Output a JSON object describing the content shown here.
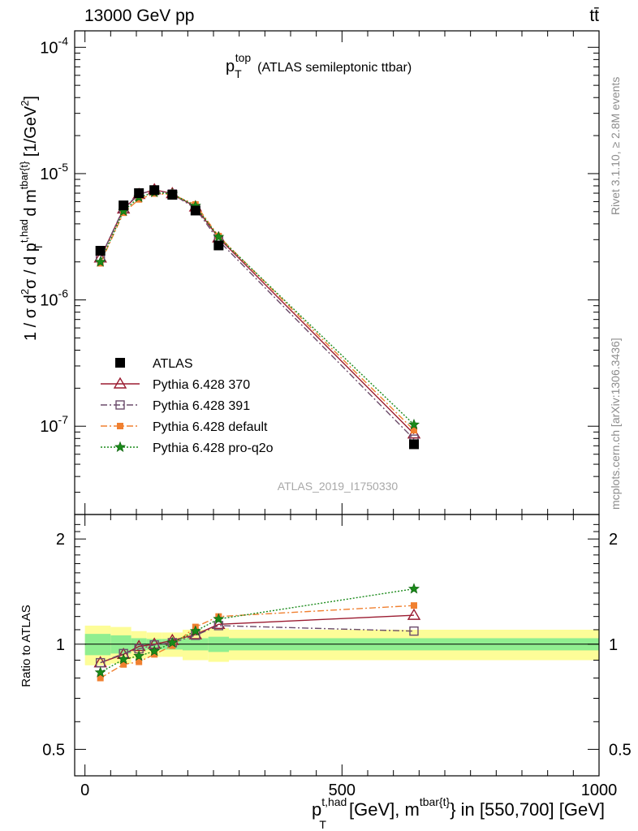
{
  "header": {
    "left": "13000 GeV pp",
    "right": "tt̄"
  },
  "plot_title": {
    "main": "p",
    "sub": "T",
    "sup": "top",
    "suffix": "(ATLAS semileptonic ttbar)"
  },
  "side_labels": {
    "rivet": "Rivet 3.1.10, ≥ 2.8M events",
    "mcplots": "mcplots.cern.ch [arXiv:1306.3436]"
  },
  "watermark": "ATLAS_2019_I1750330",
  "y_label": {
    "a": "1 / σ d",
    "a_sup": "2",
    "b": "σ / d p",
    "b_sup": "t,had",
    "b_sub": "T",
    "c": " d m",
    "c_sup": "tbar{t}",
    "d": " [1/GeV",
    "d_sup": "2",
    "e": "]"
  },
  "x_label": {
    "a": "p",
    "a_sup": "t,had",
    "a_sub": "T",
    "b": " [GeV], m",
    "b_sup": "tbar{t}",
    "c": "} in [550,700] [GeV]"
  },
  "ratio_ylabel": "Ratio to ATLAS",
  "legend": [
    {
      "label": "ATLAS",
      "color": "#000000",
      "marker": "square-filled",
      "dash": ""
    },
    {
      "label": "Pythia 6.428 370",
      "color": "#9b1c31",
      "marker": "triangle-open",
      "dash": ""
    },
    {
      "label": "Pythia 6.428 391",
      "color": "#6b4c6b",
      "marker": "square-open",
      "dash": "8,3,2,3"
    },
    {
      "label": "Pythia 6.428 default",
      "color": "#f08030",
      "marker": "square-filled-small",
      "dash": "8,3,2,3"
    },
    {
      "label": "Pythia 6.428 pro-q2o",
      "color": "#1a8a1a",
      "marker": "star",
      "dash": "2,2"
    }
  ],
  "chart_data": {
    "type": "line",
    "x_label_text": "p_T^{t,had} [GeV], m^{tbar{t}} in [550,700] [GeV]",
    "xlim": [
      -20,
      1000
    ],
    "x_ticks": [
      0,
      500,
      1000
    ],
    "main": {
      "ylog": true,
      "ylim": [
        2e-08,
        0.000135
      ],
      "y_ticks": [
        "10^-7",
        "10^-6",
        "10^-5",
        "10^-4"
      ],
      "data": {
        "name": "ATLAS",
        "x": [
          30,
          75,
          105,
          135,
          170,
          215,
          260,
          640
        ],
        "y": [
          2.45e-06,
          5.6e-06,
          7e-06,
          7.4e-06,
          6.8e-06,
          5.1e-06,
          2.7e-06,
          7.2e-08
        ]
      },
      "series": [
        {
          "name": "Pythia 6.428 370",
          "x": [
            30,
            75,
            105,
            135,
            170,
            215,
            260,
            640
          ],
          "y": [
            2.15e-06,
            5.25e-06,
            6.85e-06,
            7.45e-06,
            6.95e-06,
            5.45e-06,
            3.1e-06,
            8.7e-08
          ]
        },
        {
          "name": "Pythia 6.428 391",
          "x": [
            30,
            75,
            105,
            135,
            170,
            215,
            260,
            640
          ],
          "y": [
            2.15e-06,
            5.3e-06,
            6.9e-06,
            7.4e-06,
            6.9e-06,
            5.3e-06,
            2.95e-06,
            7.9e-08
          ]
        },
        {
          "name": "Pythia 6.428 default",
          "x": [
            30,
            75,
            105,
            135,
            170,
            215,
            260,
            640
          ],
          "y": [
            1.95e-06,
            4.9e-06,
            6.25e-06,
            6.95e-06,
            6.8e-06,
            5.7e-06,
            3.2e-06,
            9.3e-08
          ]
        },
        {
          "name": "Pythia 6.428 pro-q2o",
          "x": [
            30,
            75,
            105,
            135,
            170,
            215,
            260,
            640
          ],
          "y": [
            2e-06,
            5.05e-06,
            6.5e-06,
            7.1e-06,
            6.9e-06,
            5.55e-06,
            3.15e-06,
            1.03e-07
          ]
        }
      ]
    },
    "ratio": {
      "ylog": true,
      "ylim": [
        0.42,
        2.35
      ],
      "y_ticks": [
        0.5,
        1,
        2
      ],
      "band_edges": [
        0,
        50,
        90,
        120,
        150,
        190,
        240,
        280,
        1000
      ],
      "band_inner": [
        0.07,
        0.06,
        0.04,
        0.035,
        0.035,
        0.04,
        0.05,
        0.04
      ],
      "band_outer": [
        0.13,
        0.12,
        0.09,
        0.08,
        0.08,
        0.1,
        0.11,
        0.1
      ],
      "series": [
        {
          "name": "Pythia 6.428 370",
          "x": [
            30,
            75,
            105,
            135,
            170,
            215,
            260,
            640
          ],
          "y": [
            0.885,
            0.935,
            0.985,
            1.0,
            1.025,
            1.065,
            1.14,
            1.21
          ]
        },
        {
          "name": "Pythia 6.428 391",
          "x": [
            30,
            75,
            105,
            135,
            170,
            215,
            260,
            640
          ],
          "y": [
            0.885,
            0.94,
            0.97,
            0.995,
            1.01,
            1.06,
            1.13,
            1.09
          ]
        },
        {
          "name": "Pythia 6.428 default",
          "x": [
            30,
            75,
            105,
            135,
            170,
            215,
            260,
            640
          ],
          "y": [
            0.8,
            0.875,
            0.89,
            0.935,
            0.99,
            1.12,
            1.2,
            1.29
          ]
        },
        {
          "name": "Pythia 6.428 pro-q2o",
          "x": [
            30,
            75,
            105,
            135,
            170,
            215,
            260,
            640
          ],
          "y": [
            0.83,
            0.905,
            0.925,
            0.955,
            1.01,
            1.09,
            1.18,
            1.44
          ]
        }
      ]
    }
  }
}
